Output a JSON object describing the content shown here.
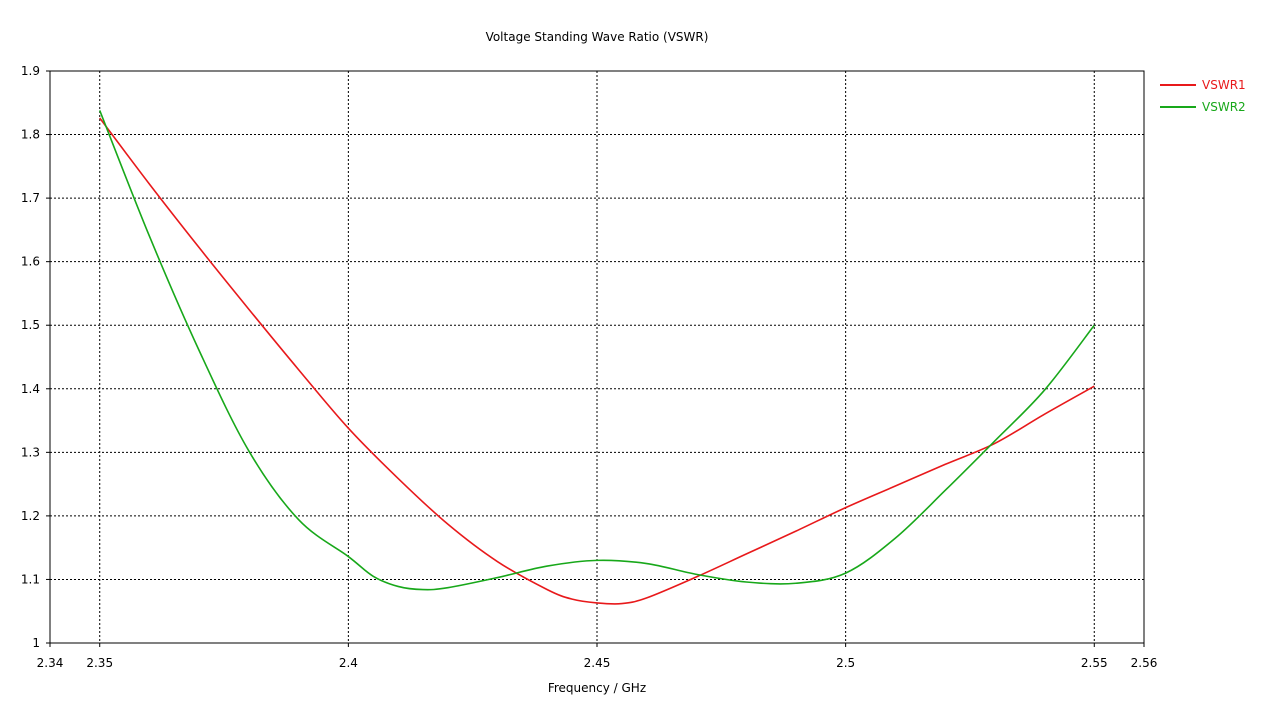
{
  "chart_data": {
    "type": "line",
    "title": "Voltage Standing Wave Ratio (VSWR)",
    "xlabel": "Frequency / GHz",
    "ylabel": "",
    "xlim": [
      2.34,
      2.56
    ],
    "ylim": [
      1.0,
      1.9
    ],
    "x_ticks": [
      2.34,
      2.35,
      2.4,
      2.45,
      2.5,
      2.55,
      2.56
    ],
    "x_tick_labels": [
      "2.34",
      "2.35",
      "2.4",
      "2.45",
      "2.5",
      "2.55",
      "2.56"
    ],
    "y_ticks": [
      1.0,
      1.1,
      1.2,
      1.3,
      1.4,
      1.5,
      1.6,
      1.7,
      1.8,
      1.9
    ],
    "y_tick_labels": [
      "1",
      "1.1",
      "1.2",
      "1.3",
      "1.4",
      "1.5",
      "1.6",
      "1.7",
      "1.8",
      "1.9"
    ],
    "x_grid": [
      2.35,
      2.4,
      2.45,
      2.5,
      2.55
    ],
    "y_grid": [
      1.1,
      1.2,
      1.3,
      1.4,
      1.5,
      1.6,
      1.7,
      1.8
    ],
    "grid": true,
    "grid_style": "dashed",
    "legend_position": "outside-top-right",
    "series": [
      {
        "name": "VSWR1",
        "color": "#e8191b",
        "x": [
          2.35,
          2.36,
          2.37,
          2.38,
          2.39,
          2.4,
          2.41,
          2.42,
          2.43,
          2.44,
          2.445,
          2.45,
          2.455,
          2.46,
          2.47,
          2.48,
          2.49,
          2.5,
          2.51,
          2.52,
          2.53,
          2.54,
          2.55
        ],
        "values": [
          1.826,
          1.722,
          1.622,
          1.525,
          1.43,
          1.338,
          1.259,
          1.187,
          1.128,
          1.084,
          1.069,
          1.063,
          1.062,
          1.071,
          1.104,
          1.14,
          1.176,
          1.213,
          1.247,
          1.281,
          1.314,
          1.36,
          1.404
        ]
      },
      {
        "name": "VSWR2",
        "color": "#18a81a",
        "x": [
          2.35,
          2.36,
          2.37,
          2.38,
          2.39,
          2.4,
          2.405,
          2.41,
          2.415,
          2.42,
          2.43,
          2.44,
          2.45,
          2.46,
          2.47,
          2.48,
          2.49,
          2.5,
          2.51,
          2.52,
          2.53,
          2.54,
          2.55
        ],
        "values": [
          1.838,
          1.64,
          1.46,
          1.302,
          1.194,
          1.136,
          1.105,
          1.089,
          1.084,
          1.087,
          1.103,
          1.121,
          1.13,
          1.125,
          1.108,
          1.096,
          1.094,
          1.11,
          1.165,
          1.24,
          1.318,
          1.398,
          1.5
        ]
      }
    ]
  }
}
